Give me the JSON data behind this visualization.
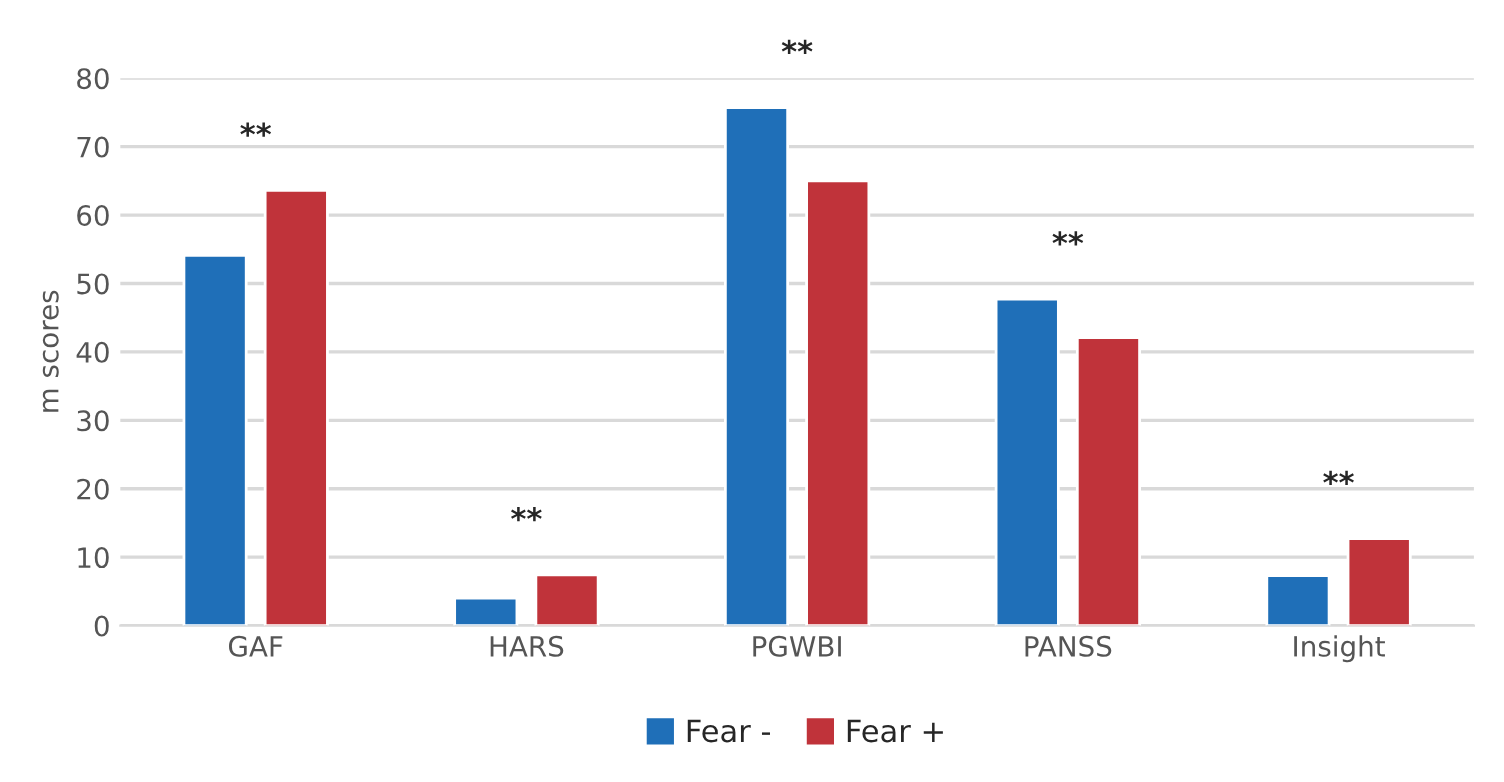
{
  "chart_data": {
    "type": "bar",
    "ylabel": "m scores",
    "categories": [
      "GAF",
      "HARS",
      "PGWBI",
      "PANSS",
      "Insight"
    ],
    "series": [
      {
        "name": "Fear -",
        "color": "#1f6fb8",
        "values": [
          54.1,
          4.0,
          75.7,
          47.7,
          7.3
        ]
      },
      {
        "name": "Fear +",
        "color": "#c0333a",
        "values": [
          63.6,
          7.4,
          65.0,
          42.1,
          12.7
        ]
      }
    ],
    "ylim": [
      0,
      80
    ],
    "yticks": [
      0,
      10,
      20,
      30,
      40,
      50,
      60,
      70,
      80
    ],
    "grid": "y",
    "legend": "bottom",
    "annotations": [
      "**",
      "**",
      "**",
      "**",
      "**"
    ]
  }
}
